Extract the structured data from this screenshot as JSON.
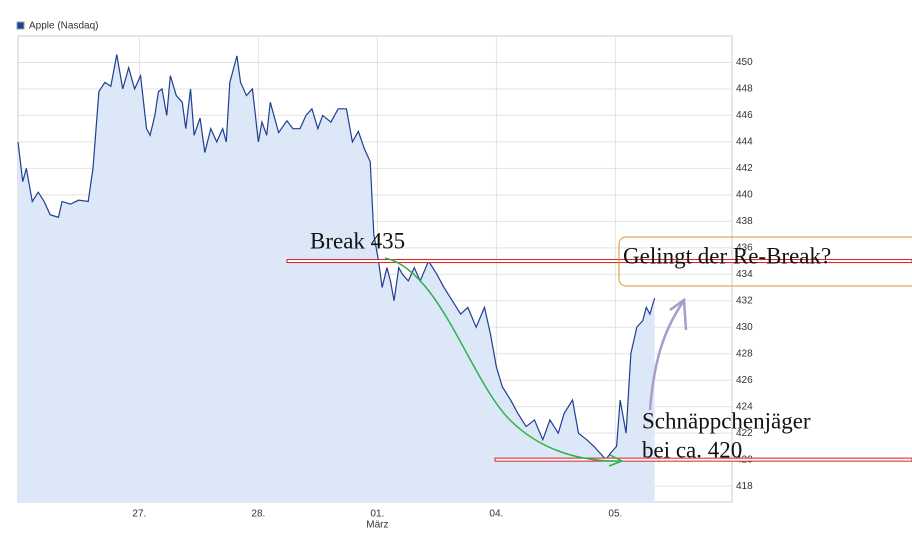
{
  "chart_data": {
    "type": "area",
    "series": [
      {
        "name": "Apple (Nasdaq)",
        "color": "#1f3f8f",
        "fill": "#dce8f8",
        "x": [
          -1.02,
          -0.98,
          -0.95,
          -0.9,
          -0.85,
          -0.8,
          -0.75,
          -0.68,
          -0.65,
          -0.58,
          -0.51,
          -0.43,
          -0.39,
          -0.34,
          -0.29,
          -0.24,
          -0.19,
          -0.14,
          -0.09,
          -0.04,
          0.01,
          0.06,
          0.09,
          0.13,
          0.16,
          0.19,
          0.23,
          0.26,
          0.31,
          0.36,
          0.39,
          0.43,
          0.46,
          0.51,
          0.55,
          0.6,
          0.65,
          0.7,
          0.73,
          0.76,
          0.82,
          0.85,
          0.9,
          0.95,
          1.0,
          1.03,
          1.07,
          1.1,
          1.17,
          1.24,
          1.29,
          1.35,
          1.4,
          1.45,
          1.5,
          1.54,
          1.61,
          1.67,
          1.74,
          1.79,
          1.84,
          1.89,
          1.94,
          1.97,
          2.01,
          2.04,
          2.08,
          2.11,
          2.14,
          2.18,
          2.21,
          2.26,
          2.31,
          2.36,
          2.43,
          2.5,
          2.56,
          2.63,
          2.7,
          2.76,
          2.83,
          2.9,
          2.95,
          3.0,
          3.05,
          3.12,
          3.18,
          3.25,
          3.32,
          3.39,
          3.45,
          3.52,
          3.57,
          3.64,
          3.69,
          3.76,
          3.82,
          3.87,
          3.92,
          3.96,
          4.01,
          4.04,
          4.09,
          4.13,
          4.18,
          4.23,
          4.26,
          4.29,
          4.33
        ],
        "values": [
          444,
          441,
          442,
          439.5,
          440.2,
          439.5,
          438.5,
          438.3,
          439.5,
          439.3,
          439.6,
          439.5,
          442,
          447.8,
          448.5,
          448.2,
          450.6,
          448,
          449.6,
          448,
          449,
          445,
          444.5,
          446,
          447.8,
          448,
          446,
          449,
          447.5,
          447,
          445,
          448,
          444.5,
          445.8,
          443.2,
          445,
          444,
          445,
          444,
          448.5,
          450.5,
          448.5,
          447.5,
          448,
          444,
          445.5,
          444.5,
          447,
          444.7,
          445.6,
          445,
          445,
          446,
          446.5,
          445,
          446,
          445.5,
          446.5,
          446.5,
          444,
          444.8,
          443.5,
          442.5,
          437,
          435,
          433,
          434.5,
          433.5,
          432,
          434.5,
          434,
          433.5,
          434.5,
          433.5,
          435,
          434,
          433,
          432,
          431,
          431.5,
          430,
          431.5,
          429.5,
          427,
          425.5,
          424.5,
          423.5,
          422.5,
          423,
          421.5,
          423,
          422,
          423.5,
          424.5,
          422,
          421.5,
          421,
          420.5,
          420,
          420.5,
          421,
          424.5,
          422,
          428,
          430,
          430.5,
          431.5,
          431,
          432.2
        ]
      }
    ],
    "xlim": [
      -1.02,
      4.98
    ],
    "xticks": [
      {
        "value": 0,
        "label": "27."
      },
      {
        "value": 1,
        "label": "28."
      },
      {
        "value": 2,
        "label": "01."
      },
      {
        "value": 3,
        "label": "04."
      },
      {
        "value": 4,
        "label": "05."
      }
    ],
    "month_label": "März",
    "ylim": [
      416.8,
      452
    ],
    "yticks": [
      418,
      420,
      422,
      424,
      426,
      428,
      430,
      432,
      434,
      436,
      438,
      440,
      442,
      444,
      446,
      448,
      450
    ],
    "grid": true,
    "levels": [
      {
        "value": 435,
        "color": "#d62020"
      },
      {
        "value": 420,
        "color": "#d62020"
      }
    ],
    "annotations": {
      "break": "Break 435",
      "rebreak": "Gelingt der Re-Break?",
      "bargain": [
        "Schnäppchenjäger",
        "bei ca. 420"
      ]
    }
  }
}
